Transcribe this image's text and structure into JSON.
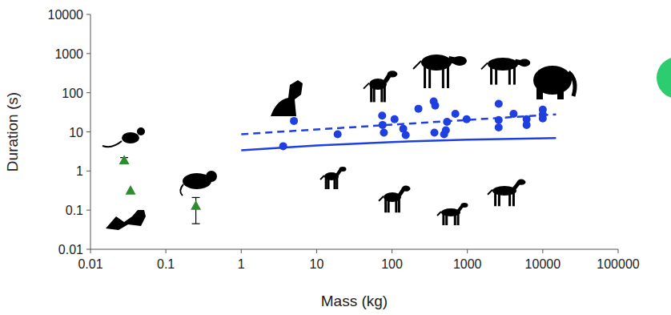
{
  "chart_data": {
    "type": "scatter",
    "log": true,
    "x_label": "Mass (kg)",
    "y_label": "Duration (s)",
    "xlim": [
      0.01,
      100000
    ],
    "xticks": [
      0.01,
      0.1,
      1,
      10,
      100,
      1000,
      10000,
      100000
    ],
    "ylim": [
      0.01,
      10000
    ],
    "yticks": [
      0.01,
      0.1,
      1,
      10,
      100,
      1000,
      10000
    ],
    "series": [
      {
        "type": "scatter",
        "marker": "triangle",
        "color": "#2e8b2e",
        "x": [
          0.028,
          0.034,
          0.25
        ],
        "values": [
          1.9,
          0.32,
          0.13
        ],
        "error_minus": [
          0.3,
          null,
          0.085
        ],
        "error_plus": [
          0.3,
          null,
          0.08
        ]
      },
      {
        "type": "scatter",
        "marker": "circle",
        "color": "#1f3fe0",
        "x": [
          3.6,
          5.0,
          19,
          74,
          75,
          78,
          108,
          141,
          152,
          224,
          357,
          374,
          365,
          491,
          518,
          537,
          692,
          977,
          2600,
          2600,
          2600,
          4100,
          6100,
          6100,
          10000,
          10000,
          10000
        ],
        "values": [
          4.3,
          19,
          8.7,
          26,
          15,
          9.5,
          21,
          12,
          8.3,
          39,
          60,
          47,
          9.5,
          8.7,
          11,
          18,
          29,
          21,
          52,
          20,
          13,
          29,
          21,
          15,
          37,
          28,
          22
        ]
      },
      {
        "type": "line",
        "line_style": "dashed",
        "color": "#1f3fe0",
        "x": [
          1,
          15000
        ],
        "values": [
          8.7,
          28
        ]
      },
      {
        "type": "line",
        "line_style": "solid",
        "color": "#1f3fe0",
        "x": [
          1,
          10,
          100,
          1000,
          15000
        ],
        "values": [
          3.4,
          4.5,
          5.5,
          6.3,
          6.9
        ]
      }
    ]
  }
}
